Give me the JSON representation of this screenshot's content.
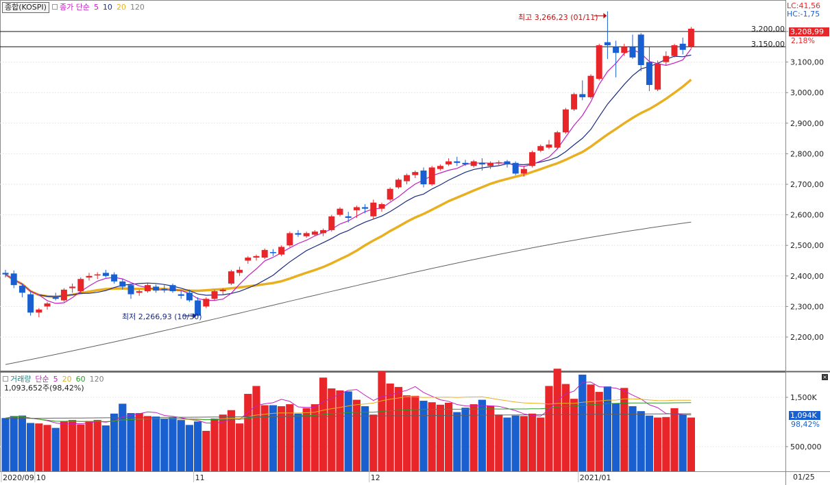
{
  "price_panel": {
    "instrument_label": "종합(KOSPI)",
    "ma_legend_prefix": "종가 단순",
    "ma_periods": [
      {
        "label": "5",
        "color": "#c020c0"
      },
      {
        "label": "10",
        "color": "#1a2a80"
      },
      {
        "label": "20",
        "color": "#e8b020"
      },
      {
        "label": "120",
        "color": "#808080"
      }
    ],
    "lc_label": "LC:41,56",
    "hc_label": "HC:-1,75",
    "current_price_label": "3,208,99",
    "change_pct_label": "2,18%",
    "high_annotation": "최고 3,266,23 (01/11)",
    "low_annotation": "최저 2,266,93 (10/30)",
    "hline_labels": [
      "3,200,00",
      "3,150,00"
    ]
  },
  "volume_panel": {
    "title": "거래량",
    "ma_legend_prefix": "단순",
    "ma_periods": [
      {
        "label": "5",
        "color": "#c020c0"
      },
      {
        "label": "20",
        "color": "#e8b020"
      },
      {
        "label": "60",
        "color": "#2a9a2a"
      },
      {
        "label": "120",
        "color": "#808080"
      }
    ],
    "last_volume_label": "1,093,652주(98,42%)",
    "current_volume_label": "1,094K",
    "current_pct_label": "98,42%"
  },
  "x_axis": {
    "labels": [
      {
        "text": "2020/09",
        "i": 0
      },
      {
        "text": "10",
        "i": 4
      },
      {
        "text": "11",
        "i": 23
      },
      {
        "text": "12",
        "i": 44
      },
      {
        "text": "2021/01",
        "i": 69
      }
    ],
    "right_label": "01/25"
  },
  "chart_data": {
    "type": "candlestick",
    "price_axis": {
      "ticks": [
        2200,
        2300,
        2400,
        2500,
        2600,
        2700,
        2800,
        2900,
        3000,
        3100,
        3200
      ],
      "tick_labels": [
        "2,200,00",
        "2,300,00",
        "2,400,00",
        "2,500,00",
        "2,600,00",
        "2,700,00",
        "2,800,00",
        "2,900,00",
        "3,000,00",
        "3,100,00",
        "3,200,00"
      ],
      "range": [
        2110,
        3300
      ]
    },
    "volume_axis": {
      "ticks": [
        500000,
        1500000
      ],
      "tick_labels": [
        "500,000",
        "1,500K"
      ],
      "range": [
        0,
        2000000
      ]
    },
    "horizontal_lines": [
      3200,
      3150
    ],
    "high": {
      "value": 3266.23,
      "date": "01/11"
    },
    "low": {
      "value": 2266.93,
      "date": "10/30"
    },
    "candles": [
      [
        2410,
        2420,
        2395,
        2405
      ],
      [
        2408,
        2418,
        2360,
        2370
      ],
      [
        2368,
        2375,
        2330,
        2345
      ],
      [
        2340,
        2350,
        2270,
        2280
      ],
      [
        2280,
        2295,
        2265,
        2290
      ],
      [
        2300,
        2315,
        2290,
        2310
      ],
      [
        2330,
        2345,
        2320,
        2325
      ],
      [
        2320,
        2360,
        2315,
        2355
      ],
      [
        2360,
        2375,
        2345,
        2365
      ],
      [
        2350,
        2395,
        2345,
        2390
      ],
      [
        2395,
        2410,
        2385,
        2400
      ],
      [
        2402,
        2412,
        2390,
        2405
      ],
      [
        2410,
        2420,
        2395,
        2400
      ],
      [
        2405,
        2412,
        2375,
        2382
      ],
      [
        2382,
        2390,
        2355,
        2365
      ],
      [
        2370,
        2375,
        2325,
        2340
      ],
      [
        2345,
        2355,
        2335,
        2350
      ],
      [
        2350,
        2375,
        2345,
        2370
      ],
      [
        2365,
        2372,
        2345,
        2352
      ],
      [
        2358,
        2370,
        2345,
        2355
      ],
      [
        2370,
        2375,
        2345,
        2350
      ],
      [
        2340,
        2350,
        2325,
        2335
      ],
      [
        2345,
        2355,
        2315,
        2320
      ],
      [
        2320,
        2330,
        2267,
        2270
      ],
      [
        2300,
        2330,
        2295,
        2325
      ],
      [
        2325,
        2355,
        2320,
        2350
      ],
      [
        2350,
        2360,
        2340,
        2355
      ],
      [
        2375,
        2420,
        2370,
        2415
      ],
      [
        2410,
        2430,
        2400,
        2420
      ],
      [
        2450,
        2465,
        2440,
        2460
      ],
      [
        2460,
        2470,
        2450,
        2465
      ],
      [
        2460,
        2490,
        2455,
        2485
      ],
      [
        2478,
        2488,
        2465,
        2475
      ],
      [
        2470,
        2500,
        2465,
        2495
      ],
      [
        2500,
        2545,
        2495,
        2540
      ],
      [
        2540,
        2550,
        2528,
        2535
      ],
      [
        2530,
        2545,
        2525,
        2540
      ],
      [
        2535,
        2550,
        2530,
        2545
      ],
      [
        2540,
        2555,
        2530,
        2550
      ],
      [
        2550,
        2600,
        2545,
        2595
      ],
      [
        2600,
        2625,
        2595,
        2620
      ],
      [
        2595,
        2610,
        2575,
        2590
      ],
      [
        2615,
        2630,
        2590,
        2625
      ],
      [
        2625,
        2635,
        2605,
        2620
      ],
      [
        2595,
        2650,
        2585,
        2640
      ],
      [
        2620,
        2640,
        2610,
        2635
      ],
      [
        2650,
        2690,
        2645,
        2685
      ],
      [
        2690,
        2720,
        2685,
        2715
      ],
      [
        2710,
        2735,
        2700,
        2730
      ],
      [
        2730,
        2745,
        2720,
        2740
      ],
      [
        2745,
        2755,
        2690,
        2700
      ],
      [
        2700,
        2760,
        2695,
        2755
      ],
      [
        2750,
        2765,
        2745,
        2760
      ],
      [
        2765,
        2785,
        2760,
        2775
      ],
      [
        2775,
        2790,
        2760,
        2770
      ],
      [
        2770,
        2780,
        2760,
        2765
      ],
      [
        2760,
        2780,
        2755,
        2775
      ],
      [
        2770,
        2785,
        2745,
        2765
      ],
      [
        2760,
        2775,
        2750,
        2770
      ],
      [
        2770,
        2778,
        2760,
        2772
      ],
      [
        2775,
        2780,
        2755,
        2765
      ],
      [
        2770,
        2775,
        2730,
        2735
      ],
      [
        2735,
        2760,
        2725,
        2750
      ],
      [
        2760,
        2810,
        2755,
        2805
      ],
      [
        2810,
        2830,
        2805,
        2825
      ],
      [
        2820,
        2845,
        2815,
        2830
      ],
      [
        2820,
        2875,
        2815,
        2870
      ],
      [
        2870,
        2950,
        2865,
        2945
      ],
      [
        2945,
        3000,
        2940,
        2995
      ],
      [
        2995,
        3040,
        2975,
        2985
      ],
      [
        2985,
        3060,
        2980,
        3055
      ],
      [
        3045,
        3160,
        3040,
        3155
      ],
      [
        3165,
        3266,
        3110,
        3155
      ],
      [
        3150,
        3170,
        3050,
        3130
      ],
      [
        3130,
        3160,
        3120,
        3150
      ],
      [
        3150,
        3190,
        3110,
        3115
      ],
      [
        3190,
        3195,
        3070,
        3090
      ],
      [
        3100,
        3150,
        3005,
        3025
      ],
      [
        3010,
        3105,
        3005,
        3095
      ],
      [
        3100,
        3135,
        3090,
        3120
      ],
      [
        3120,
        3160,
        3115,
        3155
      ],
      [
        3160,
        3180,
        3125,
        3140
      ],
      [
        3150,
        3215,
        3145,
        3209
      ]
    ],
    "volume_million": [
      1.08,
      1.12,
      1.13,
      0.98,
      0.97,
      0.94,
      0.88,
      1.01,
      1.04,
      0.95,
      1.02,
      1.04,
      0.93,
      1.17,
      1.37,
      1.18,
      1.18,
      1.12,
      1.11,
      1.07,
      1.09,
      1.04,
      0.94,
      1.01,
      0.82,
      1.07,
      1.15,
      1.24,
      0.97,
      1.57,
      1.73,
      1.34,
      1.34,
      1.32,
      1.36,
      1.17,
      1.28,
      1.36,
      1.9,
      1.68,
      1.64,
      1.62,
      1.45,
      1.32,
      1.15,
      2.03,
      1.78,
      1.71,
      1.54,
      1.53,
      1.43,
      1.4,
      1.35,
      1.39,
      1.2,
      1.29,
      1.36,
      1.45,
      1.33,
      1.15,
      1.09,
      1.13,
      1.12,
      1.17,
      1.09,
      1.73,
      2.08,
      1.77,
      1.47,
      1.96,
      1.76,
      1.61,
      1.72,
      1.38,
      1.69,
      1.32,
      1.22,
      1.13,
      1.09,
      1.1,
      1.28,
      1.15,
      1.09
    ]
  }
}
